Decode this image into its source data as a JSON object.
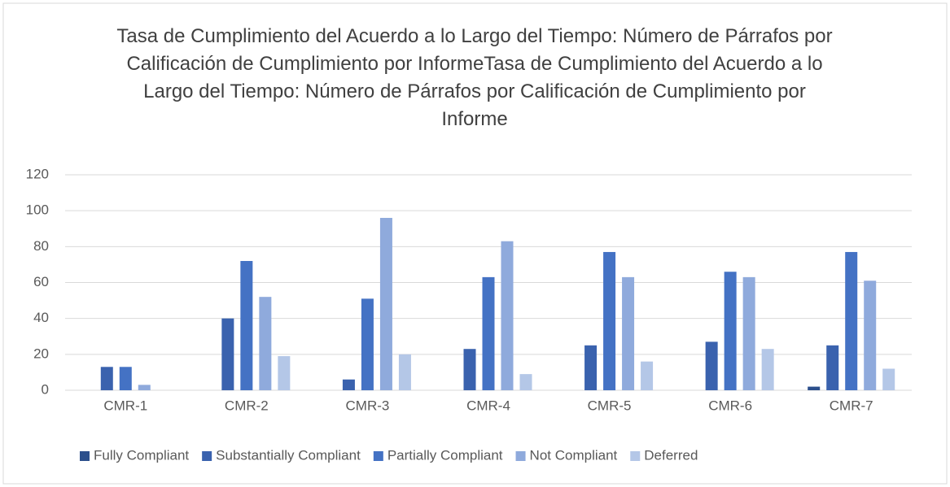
{
  "chart_data": {
    "type": "bar",
    "title": "Tasa de Cumplimiento del Acuerdo a lo Largo del Tiempo: Número de Párrafos por Calificación de Cumplimiento por InformeTasa de Cumplimiento del Acuerdo a lo Largo del Tiempo: Número de Párrafos por Calificación de Cumplimiento por Informe",
    "categories": [
      "CMR-1",
      "CMR-2",
      "CMR-3",
      "CMR-4",
      "CMR-5",
      "CMR-6",
      "CMR-7"
    ],
    "series": [
      {
        "name": "Fully Compliant",
        "color": "#2c4f8c",
        "values": [
          0,
          0,
          0,
          0,
          0,
          0,
          2
        ]
      },
      {
        "name": "Substantially Compliant",
        "color": "#3a62ae",
        "values": [
          13,
          40,
          6,
          23,
          25,
          27,
          25
        ]
      },
      {
        "name": "Partially Compliant",
        "color": "#4472c4",
        "values": [
          13,
          72,
          51,
          63,
          77,
          66,
          77
        ]
      },
      {
        "name": "Not Compliant",
        "color": "#8faadc",
        "values": [
          3,
          52,
          96,
          83,
          63,
          63,
          61
        ]
      },
      {
        "name": "Deferred",
        "color": "#b4c7e7",
        "values": [
          0,
          19,
          20,
          9,
          16,
          23,
          12
        ]
      }
    ],
    "ylim": [
      0,
      120
    ],
    "yticks": [
      0,
      20,
      40,
      60,
      80,
      100,
      120
    ],
    "grid": true,
    "legend": "bottom"
  }
}
